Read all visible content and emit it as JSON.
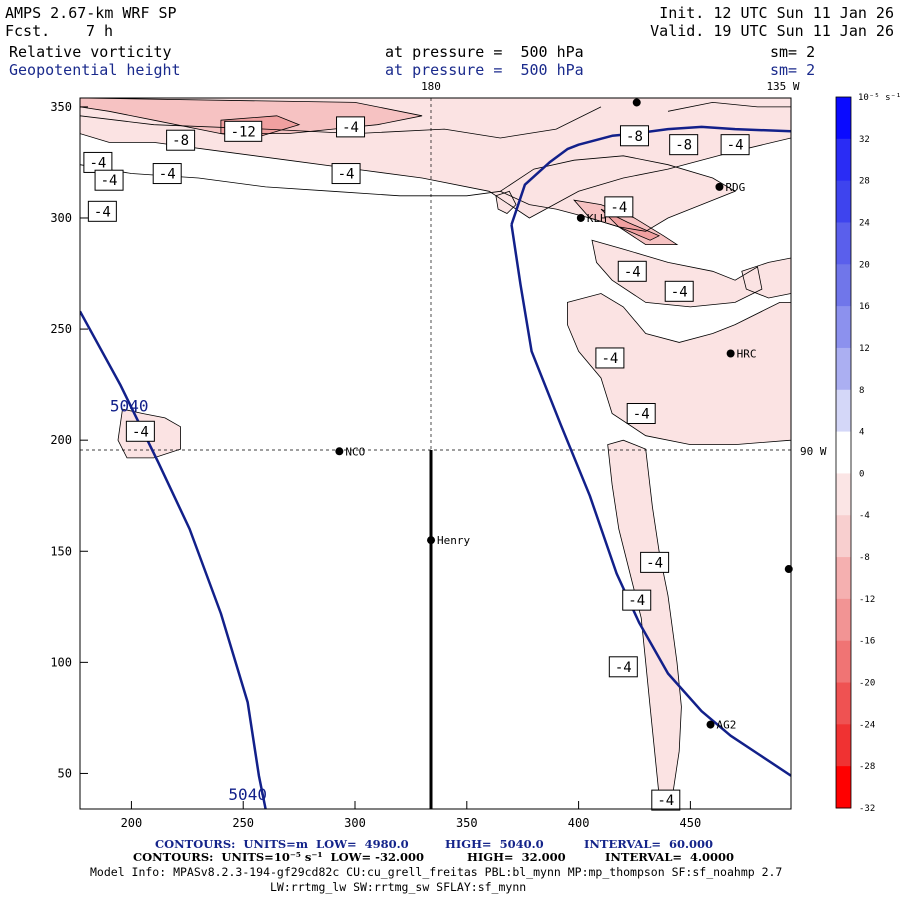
{
  "header": {
    "model": "AMPS 2.67-km WRF SP",
    "fcst_label": "Fcst.",
    "fcst_value": "7 h",
    "init": "Init. 12 UTC Sun 11 Jan 26",
    "valid": "Valid. 19 UTC Sun 11 Jan 26",
    "field1": "Relative vorticity",
    "field1_pressure": "at pressure =  500 hPa",
    "field1_sm": "sm= 2",
    "field2": "Geopotential height",
    "field2_pressure": "at pressure =  500 hPa",
    "field2_sm": "sm= 2"
  },
  "map_labels": {
    "lon_180": "180",
    "lon_135w": "135 W",
    "lon_90w": "90 W"
  },
  "stations": [
    {
      "name": "NCO",
      "x": 293,
      "y": 195
    },
    {
      "name": "Henry",
      "x": 334,
      "y": 155
    },
    {
      "name": "KLH",
      "x": 401,
      "y": 300
    },
    {
      "name": "RDG",
      "x": 463,
      "y": 314
    },
    {
      "name": "HRC",
      "x": 468,
      "y": 239
    },
    {
      "name": "AG2",
      "x": 459,
      "y": 72
    },
    {
      "name": "",
      "x": 494,
      "y": 142
    },
    {
      "name": "",
      "x": 426,
      "y": 352
    }
  ],
  "chart_data": {
    "type": "contour",
    "xlim": [
      177,
      495
    ],
    "ylim": [
      34,
      354
    ],
    "xticks": [
      200,
      250,
      300,
      350,
      400,
      450
    ],
    "yticks": [
      50,
      100,
      150,
      200,
      250,
      300,
      350
    ],
    "height_contours": [
      {
        "label": "5040",
        "points": [
          [
            177,
            258
          ],
          [
            195,
            225
          ],
          [
            212,
            190
          ],
          [
            226,
            160
          ],
          [
            240,
            122
          ],
          [
            252,
            82
          ],
          [
            257,
            49
          ],
          [
            260,
            34
          ]
        ]
      },
      {
        "label": "",
        "points": [
          [
            370,
            297
          ],
          [
            376,
            315
          ],
          [
            387,
            325
          ],
          [
            395,
            331
          ],
          [
            400,
            333
          ],
          [
            415,
            337
          ],
          [
            425,
            338
          ],
          [
            440,
            340
          ],
          [
            455,
            341
          ],
          [
            470,
            340
          ],
          [
            495,
            339
          ]
        ]
      },
      {
        "label": "",
        "points": [
          [
            370,
            297
          ],
          [
            374,
            270
          ],
          [
            379,
            240
          ],
          [
            392,
            207
          ],
          [
            405,
            175
          ],
          [
            417,
            140
          ],
          [
            427,
            118
          ],
          [
            440,
            95
          ],
          [
            455,
            78
          ],
          [
            468,
            67
          ],
          [
            480,
            59
          ],
          [
            495,
            49
          ]
        ]
      }
    ],
    "height_labels": [
      {
        "text": "5040",
        "x": 199,
        "y": 215
      },
      {
        "text": "5040",
        "x": 252,
        "y": 40
      }
    ],
    "vorticity_labels": [
      {
        "text": "-4",
        "x": 185,
        "y": 325
      },
      {
        "text": "-4",
        "x": 190,
        "y": 317
      },
      {
        "text": "-4",
        "x": 187,
        "y": 303
      },
      {
        "text": "-8",
        "x": 222,
        "y": 335
      },
      {
        "text": "-12",
        "x": 250,
        "y": 339
      },
      {
        "text": "-4",
        "x": 216,
        "y": 320
      },
      {
        "text": "-4",
        "x": 298,
        "y": 341
      },
      {
        "text": "-4",
        "x": 296,
        "y": 320
      },
      {
        "text": "-8",
        "x": 425,
        "y": 337
      },
      {
        "text": "-8",
        "x": 447,
        "y": 333
      },
      {
        "text": "-4",
        "x": 470,
        "y": 333
      },
      {
        "text": "-4",
        "x": 418,
        "y": 305
      },
      {
        "text": "-4",
        "x": 424,
        "y": 276
      },
      {
        "text": "-4",
        "x": 445,
        "y": 267
      },
      {
        "text": "-4",
        "x": 414,
        "y": 237
      },
      {
        "text": "-4",
        "x": 428,
        "y": 212
      },
      {
        "text": "-4",
        "x": 204,
        "y": 204
      },
      {
        "text": "-4",
        "x": 434,
        "y": 145
      },
      {
        "text": "-4",
        "x": 426,
        "y": 128
      },
      {
        "text": "-4",
        "x": 420,
        "y": 98
      },
      {
        "text": "-4",
        "x": 439,
        "y": 38
      }
    ],
    "colorbar": {
      "unit": "10⁻⁵ s⁻¹",
      "ticks": [
        32,
        28,
        24,
        20,
        16,
        12,
        8,
        4,
        0,
        -4,
        -8,
        -12,
        -16,
        -20,
        -24,
        -28,
        -32
      ],
      "colors": [
        "#0a0aff",
        "#2a2cf5",
        "#3e44ee",
        "#5a5fec",
        "#7076ea",
        "#8c91ee",
        "#abaff2",
        "#d4d7f8",
        "#ffffff",
        "#fbe5e5",
        "#f8cfcf",
        "#f5b0b0",
        "#f29494",
        "#f07474",
        "#ef5252",
        "#f03232",
        "#ff0000"
      ]
    },
    "shade_colors": {
      "light": "#fbe3e3",
      "mid": "#f6c2c2",
      "dark": "#f0a0a0"
    },
    "height_line_color": "#12208a"
  },
  "footer": {
    "line1_a": "CONTOURS:  UNITS=m  LOW=  4980.0",
    "line1_b": "HIGH=  5040.0",
    "line1_c": "INTERVAL=  60.000",
    "line2_a": "CONTOURS:  UNITS=10⁻⁵ s⁻¹  LOW= -32.000",
    "line2_b": "HIGH=  32.000",
    "line2_c": "INTERVAL=  4.0000",
    "line3": "Model Info: MPASv8.2.3-194-gf29cd82c CU:cu_grell_freitas PBL:bl_mynn MP:mp_thompson SF:sf_noahmp 2.7",
    "line4": "LW:rrtmg_lw SW:rrtmg_sw SFLAY:sf_mynn"
  }
}
